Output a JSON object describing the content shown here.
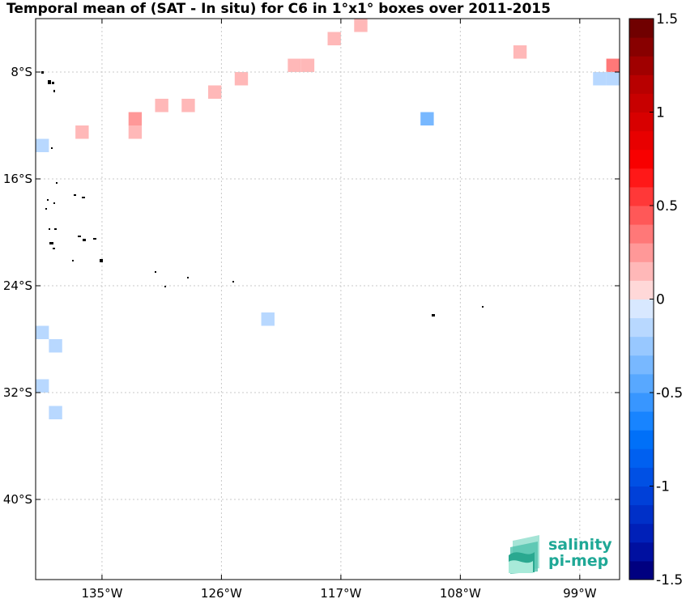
{
  "chart_data": {
    "type": "heatmap",
    "title": "Temporal mean of (SAT - In situ) for C6 in 1°x1° boxes over 2011-2015",
    "xlabel": "",
    "ylabel": "",
    "xlim": [
      -140,
      -96
    ],
    "ylim": [
      -46,
      -4
    ],
    "x_ticks": [
      -135,
      -126,
      -117,
      -108,
      -99
    ],
    "x_tick_labels": [
      "135°W",
      "126°W",
      "117°W",
      "108°W",
      "99°W"
    ],
    "y_ticks": [
      -8,
      -16,
      -24,
      -32,
      -40
    ],
    "y_tick_labels": [
      "8°S",
      "16°S",
      "24°S",
      "32°S",
      "40°S"
    ],
    "grid": true,
    "colorbar": {
      "range": [
        -1.5,
        1.5
      ],
      "levels": 30,
      "ticks": [
        1.5,
        1,
        0.5,
        0,
        -0.5,
        -1,
        -1.5
      ],
      "tick_labels": [
        "1.5",
        "1",
        "0.5",
        "0",
        "-0.5",
        "-1",
        "-1.5"
      ],
      "colors": [
        "#000080",
        "#0010a0",
        "#0020b8",
        "#0030c8",
        "#0040d8",
        "#0050e4",
        "#0060f0",
        "#0070f8",
        "#1884ff",
        "#3896ff",
        "#58a8ff",
        "#78b8ff",
        "#98c8ff",
        "#b8d8ff",
        "#d8e8ff",
        "#ffd8d8",
        "#ffb8b8",
        "#ff9898",
        "#ff7878",
        "#ff5858",
        "#ff3838",
        "#ff1818",
        "#f80000",
        "#e80000",
        "#d80000",
        "#c80000",
        "#b80000",
        "#a00000",
        "#880000",
        "#700000"
      ]
    },
    "cells": [
      {
        "lon": -117.5,
        "lat": -5.5,
        "value": 0.1
      },
      {
        "lon": -115.5,
        "lat": -4.5,
        "value": 0.1
      },
      {
        "lon": -103.5,
        "lat": -6.5,
        "value": 0.1
      },
      {
        "lon": -120.5,
        "lat": -7.5,
        "value": 0.1
      },
      {
        "lon": -119.5,
        "lat": -7.5,
        "value": 0.1
      },
      {
        "lon": -124.5,
        "lat": -8.5,
        "value": 0.15
      },
      {
        "lon": -126.5,
        "lat": -9.5,
        "value": 0.1
      },
      {
        "lon": -128.5,
        "lat": -10.5,
        "value": 0.1
      },
      {
        "lon": -130.5,
        "lat": -10.5,
        "value": 0.1
      },
      {
        "lon": -132.5,
        "lat": -11.5,
        "value": 0.25
      },
      {
        "lon": -132.5,
        "lat": -12.5,
        "value": 0.1
      },
      {
        "lon": -136.5,
        "lat": -12.5,
        "value": 0.15
      },
      {
        "lon": -96.5,
        "lat": -7.5,
        "value": 0.35
      },
      {
        "lon": -97.5,
        "lat": -8.5,
        "value": -0.1
      },
      {
        "lon": -96.5,
        "lat": -8.5,
        "value": -0.2
      },
      {
        "lon": -110.5,
        "lat": -11.5,
        "value": -0.4
      },
      {
        "lon": -139.5,
        "lat": -13.5,
        "value": -0.1
      },
      {
        "lon": -122.5,
        "lat": -26.5,
        "value": -0.2
      },
      {
        "lon": -139.5,
        "lat": -27.5,
        "value": -0.2
      },
      {
        "lon": -138.5,
        "lat": -28.5,
        "value": -0.1
      },
      {
        "lon": -139.5,
        "lat": -31.5,
        "value": -0.1
      },
      {
        "lon": -138.5,
        "lat": -33.5,
        "value": -0.2
      }
    ]
  },
  "logo": {
    "line1": "salinity",
    "line2": "pi-mep"
  }
}
